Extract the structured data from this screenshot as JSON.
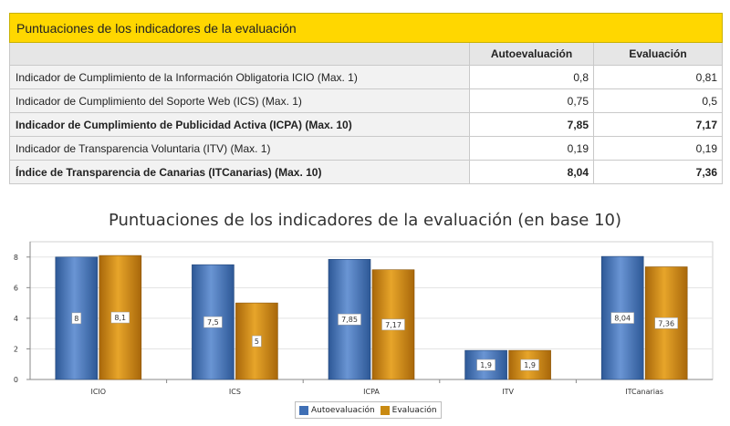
{
  "table": {
    "title": "Puntuaciones de los indicadores de la evaluación",
    "columns": [
      "Autoevaluación",
      "Evaluación"
    ],
    "rows": [
      {
        "label": "Indicador de Cumplimiento de la Información Obligatoria ICIO (Max. 1)",
        "auto": "0,8",
        "eval": "0,81"
      },
      {
        "label": "Indicador de Cumplimiento del Soporte Web (ICS) (Max. 1)",
        "auto": "0,75",
        "eval": "0,5"
      },
      {
        "label": "Indicador de Cumplimiento de Publicidad Activa (ICPA) (Max. 10)",
        "auto": "7,85",
        "eval": "7,17"
      },
      {
        "label": "Indicador de Transparencia Voluntaria (ITV) (Max. 1)",
        "auto": "0,19",
        "eval": "0,19"
      },
      {
        "label": "Índice de Transparencia de Canarias (ITCanarias) (Max. 10)",
        "auto": "8,04",
        "eval": "7,36"
      }
    ]
  },
  "chart_data": {
    "type": "bar",
    "title": "Puntuaciones de los indicadores de la evaluación (en base 10)",
    "categories": [
      "ICIO",
      "ICS",
      "ICPA",
      "ITV",
      "ITCanarias"
    ],
    "series": [
      {
        "name": "Autoevaluación",
        "values": [
          8,
          7.5,
          7.85,
          1.9,
          8.04
        ],
        "labels": [
          "8",
          "7,5",
          "7,85",
          "1,9",
          "8,04"
        ],
        "color": "#3f6fb5"
      },
      {
        "name": "Evaluación",
        "values": [
          8.1,
          5,
          7.17,
          1.9,
          7.36
        ],
        "labels": [
          "8,1",
          "5",
          "7,17",
          "1,9",
          "7,36"
        ],
        "color": "#c98a12"
      }
    ],
    "yticks": [
      "0",
      "2",
      "4",
      "6",
      "8"
    ],
    "ylim": [
      0,
      9
    ],
    "grid": true,
    "legend": "bottom"
  }
}
